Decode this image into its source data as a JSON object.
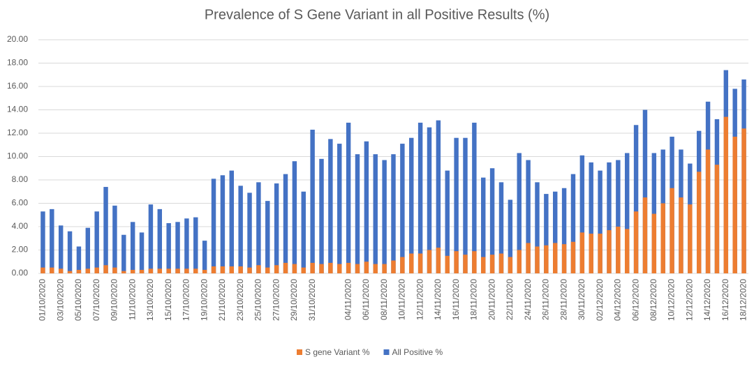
{
  "chart_data": {
    "type": "bar",
    "title": "Prevalence of S Gene Variant in all Positive Results (%)",
    "categories": [
      "01/10/2020",
      null,
      "03/10/2020",
      null,
      "05/10/2020",
      null,
      "07/10/2020",
      null,
      "09/10/2020",
      null,
      "11/10/2020",
      null,
      "13/10/2020",
      null,
      "15/10/2020",
      null,
      "17/10/2020",
      null,
      "19/10/2020",
      null,
      "21/10/2020",
      null,
      "23/10/2020",
      null,
      "25/10/2020",
      null,
      "27/10/2020",
      null,
      "29/10/2020",
      null,
      "31/10/2020",
      null,
      null,
      null,
      "04/11/2020",
      null,
      "06/11/2020",
      null,
      "08/11/2020",
      null,
      "10/11/2020",
      null,
      "12/11/2020",
      null,
      "14/11/2020",
      null,
      "16/11/2020",
      null,
      "18/11/2020",
      null,
      "20/11/2020",
      null,
      "22/11/2020",
      null,
      "24/11/2020",
      null,
      "26/11/2020",
      null,
      "28/11/2020",
      null,
      "30/11/2020",
      null,
      "02/12/2020",
      null,
      "04/12/2020",
      null,
      "06/12/2020",
      null,
      "08/12/2020",
      null,
      "10/12/2020",
      null,
      "12/12/2020",
      null,
      "14/12/2020",
      null,
      "16/12/2020",
      null,
      "18/12/2020"
    ],
    "series": [
      {
        "name": "All Positive %",
        "color": "#4472c4",
        "values": [
          5.3,
          5.5,
          4.1,
          3.6,
          2.3,
          3.9,
          5.3,
          7.4,
          5.8,
          3.3,
          4.4,
          3.5,
          5.9,
          5.5,
          4.3,
          4.4,
          4.7,
          4.8,
          2.8,
          8.1,
          8.4,
          8.8,
          7.5,
          6.9,
          7.8,
          6.2,
          7.7,
          8.5,
          9.6,
          7.0,
          12.3,
          9.8,
          11.5,
          11.1,
          12.9,
          10.2,
          11.3,
          10.2,
          9.7,
          10.2,
          11.1,
          11.6,
          12.9,
          12.5,
          13.1,
          8.8,
          11.6,
          11.6,
          12.9,
          8.2,
          9.0,
          7.8,
          6.3,
          10.3,
          9.7,
          7.8,
          6.8,
          7.0,
          7.3,
          8.5,
          10.1,
          9.5,
          8.8,
          9.5,
          9.7,
          10.3,
          12.7,
          14.0,
          10.3,
          10.6,
          11.7,
          10.6,
          9.4,
          12.2,
          14.7,
          13.2,
          17.4,
          15.8,
          16.6
        ]
      },
      {
        "name": "S gene Variant %",
        "color": "#ed7d31",
        "values": [
          0.5,
          0.5,
          0.4,
          0.2,
          0.3,
          0.4,
          0.5,
          0.7,
          0.5,
          0.2,
          0.3,
          0.3,
          0.4,
          0.4,
          0.4,
          0.4,
          0.4,
          0.4,
          0.3,
          0.6,
          0.6,
          0.6,
          0.6,
          0.5,
          0.7,
          0.5,
          0.7,
          0.9,
          0.8,
          0.5,
          0.9,
          0.8,
          0.9,
          0.8,
          0.9,
          0.8,
          1.0,
          0.8,
          0.8,
          1.1,
          1.4,
          1.7,
          1.7,
          2.0,
          2.2,
          1.5,
          1.9,
          1.6,
          1.9,
          1.4,
          1.6,
          1.7,
          1.4,
          2.0,
          2.6,
          2.3,
          2.4,
          2.6,
          2.5,
          2.7,
          3.5,
          3.4,
          3.4,
          3.7,
          4.0,
          3.8,
          5.3,
          6.5,
          5.1,
          6.0,
          7.3,
          6.5,
          5.9,
          8.7,
          10.6,
          9.3,
          13.4,
          11.7,
          12.4
        ]
      }
    ],
    "legend_order": [
      1,
      0
    ],
    "ylim": [
      0,
      20
    ],
    "yticks": [
      {
        "value": 0,
        "label": "0.00"
      },
      {
        "value": 2,
        "label": "2.00"
      },
      {
        "value": 4,
        "label": "4.00"
      },
      {
        "value": 6,
        "label": "6.00"
      },
      {
        "value": 8,
        "label": "8.00"
      },
      {
        "value": 10,
        "label": "10.00"
      },
      {
        "value": 12,
        "label": "12.00"
      },
      {
        "value": 14,
        "label": "14.00"
      },
      {
        "value": 16,
        "label": "16.00"
      },
      {
        "value": 18,
        "label": "18.00"
      },
      {
        "value": 20,
        "label": "20.00"
      }
    ],
    "grid": true,
    "legend": "bottom"
  }
}
